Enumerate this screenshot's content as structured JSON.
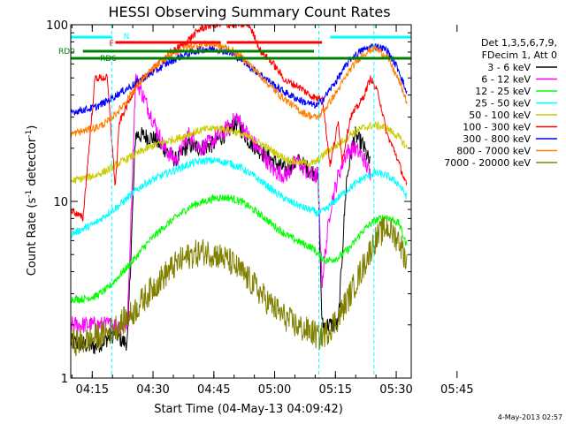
{
  "chart_data": {
    "type": "line",
    "title": "HESSI Observing Summary Count Rates",
    "xlabel": "Start Time (04-May-13 04:09:42)",
    "ylabel_main": "Count Rate (s",
    "ylabel_sup1": "-1",
    "ylabel_mid": " detector",
    "ylabel_sup2": "-1",
    "ylabel_end": ")",
    "y_scale": "log",
    "ylim": [
      1,
      100
    ],
    "xlim_minutes": [
      0,
      84
    ],
    "x_ticks": [
      "04:15",
      "04:30",
      "04:45",
      "05:00",
      "05:15",
      "05:30",
      "05:45"
    ],
    "y_tick_labels": [
      "1",
      "10",
      "100"
    ],
    "legend_position": "right",
    "legend_header": [
      "Det 1,3,5,6,7,9,",
      "FDecim 1, Att 0"
    ],
    "timestamp": "4-May-2013 02:57",
    "annotations": [
      "N",
      "F",
      "RD0",
      "RD6"
    ],
    "series": [
      {
        "name": "3 - 6 keV",
        "color": "#000000",
        "x": [
          0,
          6,
          11,
          13,
          14,
          16,
          20,
          23,
          26,
          29,
          32,
          35,
          38,
          41,
          44,
          47,
          50,
          53,
          56,
          59,
          61,
          62,
          66,
          68,
          70,
          72,
          74
        ],
        "y": [
          1.6,
          1.5,
          1.8,
          1.6,
          1.6,
          24,
          23,
          20,
          17,
          21,
          20,
          21,
          24,
          28,
          22,
          19,
          17,
          15,
          17,
          15,
          14,
          2,
          2,
          13,
          24,
          21,
          16
        ]
      },
      {
        "name": "6 - 12 keV",
        "color": "#ff00ff",
        "x": [
          0,
          6,
          11,
          13,
          14,
          16,
          20,
          23,
          26,
          29,
          32,
          35,
          38,
          41,
          44,
          47,
          50,
          53,
          56,
          59,
          61,
          62,
          64,
          66,
          68,
          70,
          72,
          74
        ],
        "y": [
          2,
          2,
          2,
          2,
          2,
          50,
          30,
          20,
          17,
          24,
          20,
          22,
          25,
          30,
          23,
          19,
          15,
          14,
          17,
          14,
          14,
          3.5,
          9,
          14,
          19,
          20,
          18,
          14
        ]
      },
      {
        "name": "12 - 25 keV",
        "color": "#00ff00",
        "x": [
          0,
          3,
          6,
          9,
          12,
          15,
          18,
          21,
          24,
          27,
          30,
          33,
          36,
          39,
          42,
          45,
          48,
          51,
          54,
          57,
          60,
          61,
          63,
          66,
          69,
          72,
          75,
          78,
          81,
          83
        ],
        "y": [
          2.8,
          2.8,
          2.9,
          3.2,
          3.8,
          4.5,
          5.5,
          6.5,
          7.5,
          8.5,
          9.5,
          10,
          10.5,
          10.5,
          10,
          9,
          8,
          7,
          6.3,
          5.8,
          5.4,
          5,
          4.6,
          4.8,
          5.5,
          6.8,
          7.8,
          8.2,
          7.5,
          5.5
        ]
      },
      {
        "name": "25 - 50 keV",
        "color": "#00ffff",
        "x": [
          0,
          3,
          6,
          9,
          12,
          15,
          18,
          21,
          24,
          27,
          30,
          33,
          36,
          39,
          42,
          45,
          48,
          51,
          54,
          57,
          60,
          61,
          63,
          66,
          69,
          72,
          75,
          78,
          81,
          83
        ],
        "y": [
          6.5,
          7,
          7.5,
          8.5,
          9.5,
          11,
          12.5,
          13.5,
          14.5,
          15.5,
          16.5,
          17,
          17,
          16.5,
          15.5,
          14,
          12.5,
          11,
          10,
          9.3,
          8.8,
          8.5,
          9,
          10.5,
          12,
          13.5,
          14.5,
          14,
          12.5,
          10.5
        ]
      },
      {
        "name": "50 - 100 keV",
        "color": "#cccc00",
        "x": [
          0,
          3,
          6,
          9,
          12,
          15,
          18,
          21,
          24,
          27,
          30,
          33,
          36,
          39,
          42,
          45,
          48,
          51,
          54,
          57,
          60,
          61,
          63,
          66,
          69,
          72,
          75,
          78,
          81,
          83
        ],
        "y": [
          13,
          13.5,
          14,
          15,
          16.5,
          18,
          19.5,
          21,
          22,
          23,
          24.5,
          25.5,
          26,
          25.5,
          24,
          22.5,
          20.5,
          18.5,
          17,
          16.5,
          16.5,
          17,
          19,
          21,
          24,
          26,
          27,
          26,
          23,
          20
        ]
      },
      {
        "name": "100 - 300 keV",
        "color": "#ff0000",
        "x": [
          0,
          3,
          6,
          9,
          11,
          12,
          16,
          20,
          24,
          28,
          32,
          35,
          38,
          41,
          44,
          47,
          50,
          53,
          56,
          59,
          61,
          62,
          64,
          66,
          67,
          69,
          72,
          74,
          76,
          78,
          80,
          82,
          83
        ],
        "y": [
          9,
          8,
          50,
          50,
          12,
          28,
          45,
          55,
          68,
          78,
          95,
          100,
          100,
          100,
          100,
          70,
          60,
          48,
          45,
          40,
          38,
          40,
          16,
          28,
          17,
          30,
          38,
          50,
          40,
          24,
          19,
          14,
          12
        ]
      },
      {
        "name": "300 - 800 keV",
        "color": "#0000ff",
        "x": [
          0,
          3,
          6,
          9,
          12,
          15,
          18,
          21,
          24,
          27,
          30,
          33,
          36,
          39,
          42,
          45,
          48,
          51,
          54,
          57,
          60,
          61,
          63,
          66,
          69,
          72,
          75,
          78,
          81,
          83
        ],
        "y": [
          32,
          33,
          34,
          37,
          41,
          45,
          50,
          55,
          61,
          66,
          70,
          73,
          73,
          70,
          64,
          56,
          50,
          44,
          40,
          37,
          35,
          35,
          40,
          50,
          64,
          72,
          76,
          72,
          55,
          40
        ]
      },
      {
        "name": "800 - 7000 keV",
        "color": "#ff8000",
        "x": [
          0,
          3,
          6,
          9,
          12,
          15,
          18,
          21,
          24,
          27,
          30,
          33,
          36,
          39,
          42,
          45,
          48,
          51,
          54,
          57,
          60,
          61,
          63,
          66,
          69,
          72,
          75,
          78,
          81,
          83
        ],
        "y": [
          24,
          25,
          26,
          28,
          33,
          41,
          50,
          58,
          66,
          72,
          76,
          78,
          77,
          73,
          66,
          57,
          48,
          41,
          36,
          32,
          30,
          30,
          34,
          43,
          56,
          68,
          74,
          66,
          48,
          36
        ]
      },
      {
        "name": "7000 - 20000 keV",
        "color": "#808000",
        "x": [
          0,
          3,
          6,
          9,
          12,
          15,
          18,
          21,
          24,
          27,
          30,
          33,
          36,
          39,
          42,
          45,
          48,
          51,
          54,
          57,
          60,
          61,
          63,
          66,
          69,
          72,
          75,
          78,
          81,
          83
        ],
        "y": [
          1.6,
          1.6,
          1.7,
          1.8,
          2,
          2.3,
          2.8,
          3.4,
          4,
          4.6,
          5,
          5.2,
          5,
          4.6,
          4,
          3.4,
          2.8,
          2.4,
          2.1,
          1.9,
          1.8,
          1.7,
          1.8,
          2.2,
          3,
          4.2,
          6,
          7.2,
          6,
          4.5
        ]
      }
    ]
  }
}
